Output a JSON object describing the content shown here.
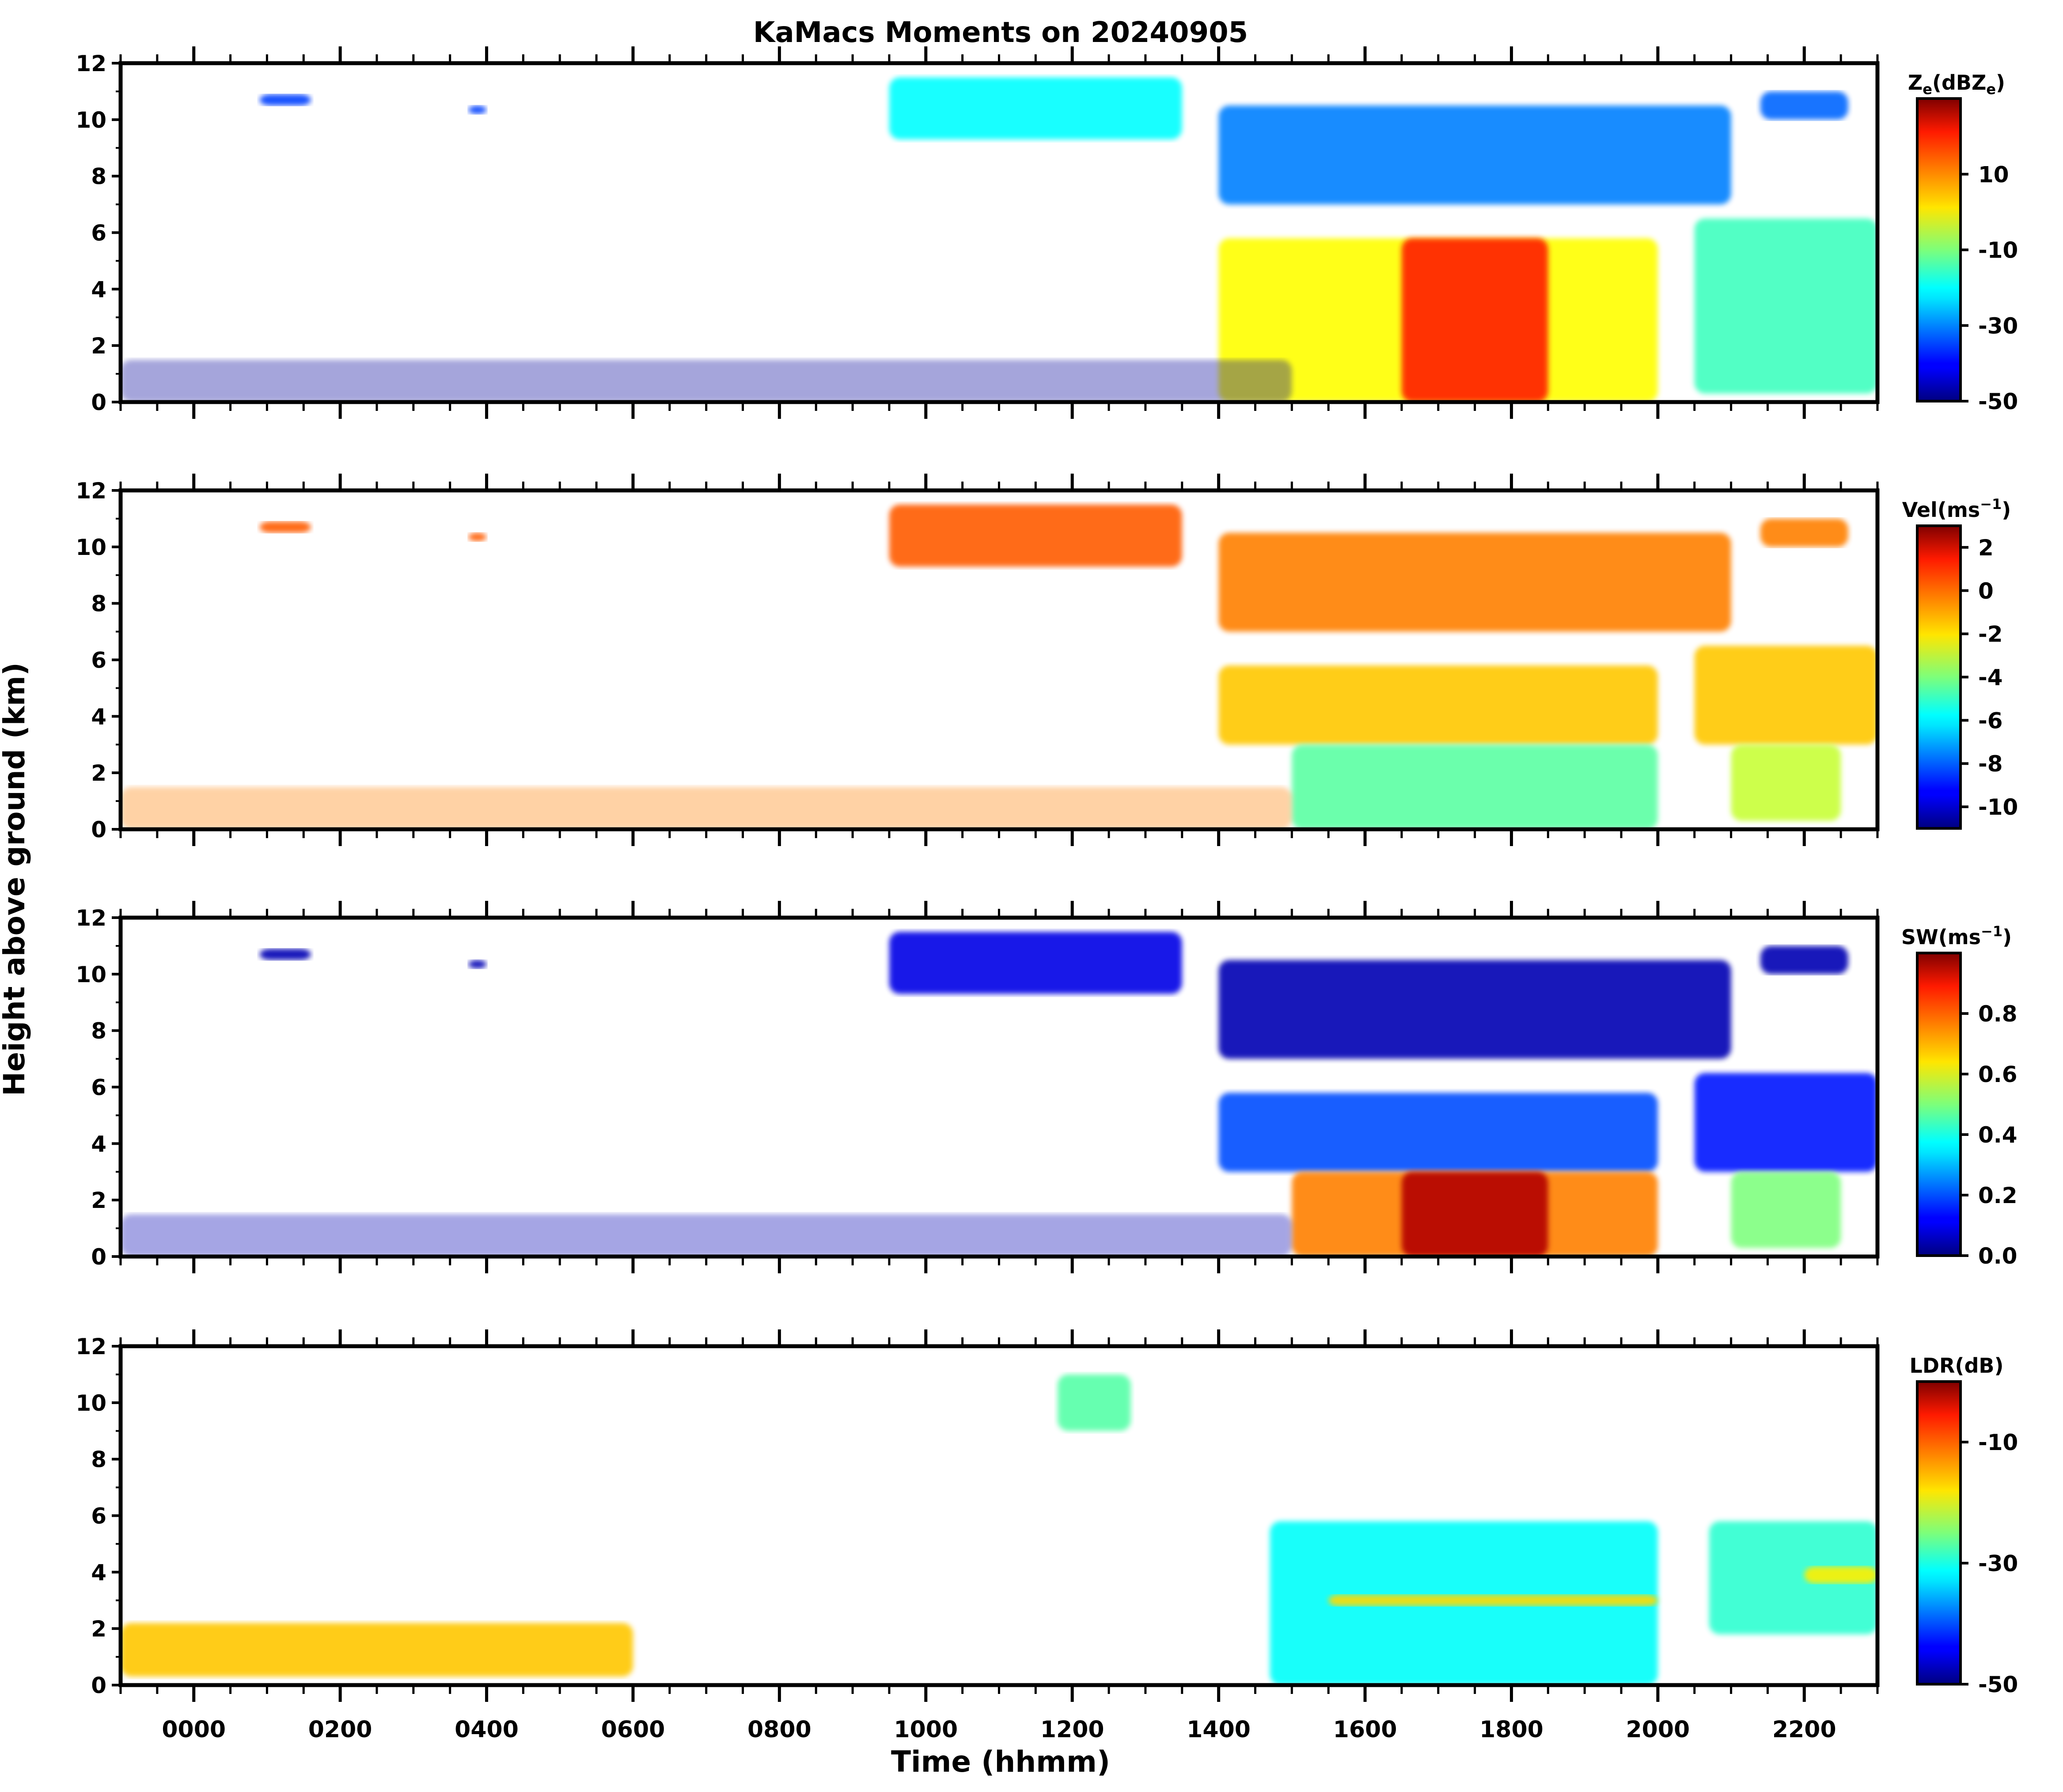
{
  "chart_data": {
    "type": "heatmap",
    "title": "KaMacs Moments on 20240905",
    "xlabel": "Time (hhmm)",
    "ylabel": "Height above ground (km)",
    "x_tick_labels": [
      "0000",
      "0200",
      "0400",
      "0600",
      "0800",
      "1000",
      "1200",
      "1400",
      "1600",
      "1800",
      "2000",
      "2200"
    ],
    "x_tick_values": [
      0,
      2,
      4,
      6,
      8,
      10,
      12,
      14,
      16,
      18,
      20,
      22
    ],
    "xlim": [
      -1,
      23
    ],
    "ylim": [
      0,
      12
    ],
    "y_ticks": [
      0,
      2,
      4,
      6,
      8,
      10,
      12
    ],
    "panels": [
      {
        "id": "ze",
        "colorbar_label": "Ze(dBZe)",
        "cbar_main": "Z",
        "cbar_sub1": "e",
        "cbar_mid": "(dBZ",
        "cbar_sub2": "e",
        "cbar_end": ")",
        "vmin": -50,
        "vmax": 30,
        "cbar_ticks": [
          10,
          -10,
          -30,
          -50
        ],
        "cbar_tick_labels": [
          "10",
          "-10",
          "-30",
          "-50"
        ],
        "features": [
          {
            "t0": 0.9,
            "t1": 1.6,
            "h0": 10.5,
            "h1": 10.9,
            "value": -35
          },
          {
            "t0": 3.75,
            "t1": 4.0,
            "h0": 10.2,
            "h1": 10.5,
            "value": -35
          },
          {
            "t0": 9.5,
            "t1": 13.5,
            "h0": 9.3,
            "h1": 11.5,
            "value": -20
          },
          {
            "t0": 14.0,
            "t1": 21.0,
            "h0": 7.0,
            "h1": 10.5,
            "value": -30
          },
          {
            "t0": 21.4,
            "t1": 22.6,
            "h0": 10.0,
            "h1": 11.0,
            "value": -32
          },
          {
            "t0": 14.0,
            "t1": 20.0,
            "h0": 0.0,
            "h1": 5.8,
            "value": 0
          },
          {
            "t0": 16.5,
            "t1": 18.5,
            "h0": 0.0,
            "h1": 5.8,
            "value": 18
          },
          {
            "t0": 20.5,
            "t1": 23.0,
            "h0": 0.3,
            "h1": 6.5,
            "value": -15
          },
          {
            "t0": -1.0,
            "t1": 15.0,
            "h0": 0.0,
            "h1": 1.5,
            "value": -48
          }
        ]
      },
      {
        "id": "vel",
        "colorbar_label": "Vel(ms-1)",
        "cbar_main": "Vel(ms",
        "cbar_sup": "−1",
        "cbar_end": ")",
        "vmin": -11,
        "vmax": 3,
        "cbar_ticks": [
          2,
          0,
          -2,
          -4,
          -6,
          -8,
          -10
        ],
        "cbar_tick_labels": [
          "2",
          "0",
          "-2",
          "-4",
          "-6",
          "-8",
          "-10"
        ],
        "features": [
          {
            "t0": 0.9,
            "t1": 1.6,
            "h0": 10.5,
            "h1": 10.9,
            "value": 0
          },
          {
            "t0": 3.75,
            "t1": 4.0,
            "h0": 10.2,
            "h1": 10.5,
            "value": 0
          },
          {
            "t0": 9.5,
            "t1": 13.5,
            "h0": 9.3,
            "h1": 11.5,
            "value": 0
          },
          {
            "t0": 14.0,
            "t1": 21.0,
            "h0": 7.0,
            "h1": 10.5,
            "value": -0.5
          },
          {
            "t0": 21.4,
            "t1": 22.6,
            "h0": 10.0,
            "h1": 11.0,
            "value": -0.5
          },
          {
            "t0": 14.0,
            "t1": 20.0,
            "h0": 3.0,
            "h1": 5.8,
            "value": -1.5
          },
          {
            "t0": 15.0,
            "t1": 20.0,
            "h0": 0.0,
            "h1": 3.0,
            "value": -4.5
          },
          {
            "t0": 20.5,
            "t1": 23.0,
            "h0": 3.0,
            "h1": 6.5,
            "value": -1.5
          },
          {
            "t0": 21.0,
            "t1": 22.5,
            "h0": 0.3,
            "h1": 3.0,
            "value": -3
          },
          {
            "t0": -1.0,
            "t1": 15.0,
            "h0": 0.0,
            "h1": 1.5,
            "value": -0.5
          }
        ]
      },
      {
        "id": "sw",
        "colorbar_label": "SW(ms-1)",
        "cbar_main": "SW(ms",
        "cbar_sup": "−1",
        "cbar_end": ")",
        "vmin": 0.0,
        "vmax": 1.0,
        "cbar_ticks": [
          0.8,
          0.6,
          0.4,
          0.2,
          0.0
        ],
        "cbar_tick_labels": [
          "0.8",
          "0.6",
          "0.4",
          "0.2",
          "0.0"
        ],
        "features": [
          {
            "t0": 0.9,
            "t1": 1.6,
            "h0": 10.5,
            "h1": 10.9,
            "value": 0.05
          },
          {
            "t0": 3.75,
            "t1": 4.0,
            "h0": 10.2,
            "h1": 10.5,
            "value": 0.05
          },
          {
            "t0": 9.5,
            "t1": 13.5,
            "h0": 9.3,
            "h1": 11.5,
            "value": 0.1
          },
          {
            "t0": 14.0,
            "t1": 21.0,
            "h0": 7.0,
            "h1": 10.5,
            "value": 0.05
          },
          {
            "t0": 21.4,
            "t1": 22.6,
            "h0": 10.0,
            "h1": 11.0,
            "value": 0.05
          },
          {
            "t0": 14.0,
            "t1": 20.0,
            "h0": 3.0,
            "h1": 5.8,
            "value": 0.2
          },
          {
            "t0": 15.0,
            "t1": 20.0,
            "h0": 0.0,
            "h1": 3.0,
            "value": 0.75
          },
          {
            "t0": 16.5,
            "t1": 18.5,
            "h0": 0.0,
            "h1": 3.0,
            "value": 0.95
          },
          {
            "t0": 20.5,
            "t1": 23.0,
            "h0": 3.0,
            "h1": 6.5,
            "value": 0.15
          },
          {
            "t0": 21.0,
            "t1": 22.5,
            "h0": 0.3,
            "h1": 3.0,
            "value": 0.5
          },
          {
            "t0": -1.0,
            "t1": 15.0,
            "h0": 0.0,
            "h1": 1.5,
            "value": 0.05
          }
        ]
      },
      {
        "id": "ldr",
        "colorbar_label": "LDR(dB)",
        "cbar_main": "LDR(dB)",
        "vmin": -50,
        "vmax": 0,
        "cbar_ticks": [
          -10,
          -30,
          -50
        ],
        "cbar_tick_labels": [
          "-10",
          "-30",
          "-50"
        ],
        "features": [
          {
            "t0": 11.8,
            "t1": 12.8,
            "h0": 9.0,
            "h1": 11.0,
            "value": -27
          },
          {
            "t0": 14.7,
            "t1": 20.0,
            "h0": 0.0,
            "h1": 5.8,
            "value": -31
          },
          {
            "t0": 15.5,
            "t1": 20.0,
            "h0": 2.8,
            "h1": 3.2,
            "value": -17
          },
          {
            "t0": 20.7,
            "t1": 23.0,
            "h0": 1.8,
            "h1": 5.8,
            "value": -29
          },
          {
            "t0": 22.0,
            "t1": 23.0,
            "h0": 3.6,
            "h1": 4.2,
            "value": -18
          },
          {
            "t0": -1.0,
            "t1": 6.0,
            "h0": 0.3,
            "h1": 2.2,
            "value": -16
          }
        ]
      }
    ]
  }
}
